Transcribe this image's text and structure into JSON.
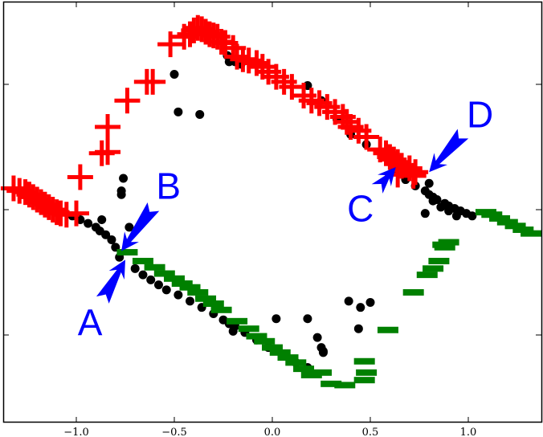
{
  "chart_data": {
    "type": "scatter",
    "title": "",
    "xlabel": "",
    "ylabel": "",
    "xlim": [
      -1.38,
      1.37
    ],
    "ylim": [
      -1.7,
      1.65
    ],
    "grid": false,
    "legend": null,
    "x_ticks": [
      -1.0,
      -0.5,
      0.0,
      0.5,
      1.0
    ],
    "x_tick_labels": [
      "−1.0",
      "−0.5",
      "0.0",
      "0.5",
      "1.0"
    ],
    "y_ticks": [
      1.0,
      0.0,
      -1.0
    ],
    "y_tick_labels": [
      "",
      "",
      ""
    ],
    "series": [
      {
        "name": "black circles",
        "marker": "circle",
        "color": "#000000",
        "points": [
          [
            -1.22,
            0.08
          ],
          [
            -1.18,
            0.06
          ],
          [
            -1.14,
            0.03
          ],
          [
            -1.1,
            0.01
          ],
          [
            -1.06,
            -0.02
          ],
          [
            -1.02,
            -0.05
          ],
          [
            -0.98,
            -0.08
          ],
          [
            -0.94,
            -0.11
          ],
          [
            -0.9,
            -0.14
          ],
          [
            -0.88,
            -0.17
          ],
          [
            -0.85,
            -0.2
          ],
          [
            -0.82,
            -0.24
          ],
          [
            -0.8,
            -0.3
          ],
          [
            -0.78,
            -0.38
          ],
          [
            -0.87,
            -0.08
          ],
          [
            -0.73,
            -0.14
          ],
          [
            -0.76,
            0.25
          ],
          [
            -0.77,
            0.15
          ],
          [
            -0.77,
            0.12
          ],
          [
            -0.5,
            1.08
          ],
          [
            -0.48,
            0.78
          ],
          [
            -0.37,
            0.76
          ],
          [
            -0.23,
            1.23
          ],
          [
            -0.22,
            1.18
          ],
          [
            -0.19,
            1.18
          ],
          [
            -0.16,
            1.16
          ],
          [
            -0.7,
            -0.47
          ],
          [
            -0.66,
            -0.52
          ],
          [
            -0.62,
            -0.56
          ],
          [
            -0.58,
            -0.6
          ],
          [
            -0.54,
            -0.64
          ],
          [
            -0.48,
            -0.68
          ],
          [
            -0.42,
            -0.73
          ],
          [
            -0.36,
            -0.78
          ],
          [
            -0.3,
            -0.83
          ],
          [
            -0.25,
            -0.88
          ],
          [
            -0.22,
            -0.91
          ],
          [
            -0.14,
            -0.98
          ],
          [
            -0.08,
            -1.04
          ],
          [
            -0.02,
            -1.1
          ],
          [
            0.06,
            -1.16
          ],
          [
            0.12,
            -1.22
          ],
          [
            0.18,
            -1.26
          ],
          [
            -0.19,
            -0.93
          ],
          [
            -0.2,
            -0.97
          ],
          [
            0.02,
            -0.87
          ],
          [
            0.18,
            -0.87
          ],
          [
            0.23,
            -1.02
          ],
          [
            0.25,
            -1.1
          ],
          [
            0.26,
            -1.13
          ],
          [
            0.26,
            -1.14
          ],
          [
            0.39,
            -0.73
          ],
          [
            0.45,
            -0.78
          ],
          [
            0.5,
            -0.74
          ],
          [
            0.44,
            -0.95
          ],
          [
            0.18,
            0.99
          ],
          [
            0.25,
            0.87
          ],
          [
            0.33,
            0.72
          ],
          [
            0.4,
            0.6
          ],
          [
            0.48,
            0.52
          ],
          [
            0.56,
            0.42
          ],
          [
            0.62,
            0.31
          ],
          [
            0.68,
            0.24
          ],
          [
            0.73,
            0.19
          ],
          [
            0.78,
            0.15
          ],
          [
            0.8,
            0.12
          ],
          [
            0.82,
            0.1
          ],
          [
            0.84,
            0.08
          ],
          [
            0.88,
            0.05
          ],
          [
            0.9,
            0.03
          ],
          [
            0.93,
            0.01
          ],
          [
            0.96,
            -0.01
          ],
          [
            0.99,
            -0.03
          ],
          [
            1.02,
            -0.05
          ],
          [
            0.82,
            0.07
          ],
          [
            0.86,
            0.02
          ],
          [
            0.9,
            -0.01
          ],
          [
            0.94,
            -0.05
          ],
          [
            0.78,
            -0.03
          ],
          [
            0.8,
            0.21
          ]
        ]
      },
      {
        "name": "red plus",
        "marker": "plus",
        "color": "#ff0000",
        "points": [
          [
            -1.32,
            0.17
          ],
          [
            -1.29,
            0.15
          ],
          [
            -1.26,
            0.14
          ],
          [
            -1.24,
            0.12
          ],
          [
            -1.22,
            0.1
          ],
          [
            -1.2,
            0.08
          ],
          [
            -1.18,
            0.06
          ],
          [
            -1.16,
            0.04
          ],
          [
            -1.14,
            0.02
          ],
          [
            -1.12,
            0.0
          ],
          [
            -1.1,
            -0.02
          ],
          [
            -1.08,
            -0.03
          ],
          [
            -1.05,
            -0.04
          ],
          [
            -1.0,
            -0.03
          ],
          [
            -0.98,
            0.26
          ],
          [
            -0.87,
            0.45
          ],
          [
            -0.84,
            0.46
          ],
          [
            -0.84,
            0.66
          ],
          [
            -0.74,
            0.87
          ],
          [
            -0.64,
            1.02
          ],
          [
            -0.61,
            1.02
          ],
          [
            -0.52,
            1.32
          ],
          [
            -0.45,
            1.38
          ],
          [
            -0.42,
            1.4
          ],
          [
            -0.4,
            1.43
          ],
          [
            -0.38,
            1.45
          ],
          [
            -0.36,
            1.44
          ],
          [
            -0.34,
            1.42
          ],
          [
            -0.32,
            1.4
          ],
          [
            -0.3,
            1.39
          ],
          [
            -0.28,
            1.38
          ],
          [
            -0.26,
            1.34
          ],
          [
            -0.24,
            1.33
          ],
          [
            -0.2,
            1.29
          ],
          [
            -0.18,
            1.22
          ],
          [
            -0.15,
            1.2
          ],
          [
            -0.12,
            1.19
          ],
          [
            -0.08,
            1.17
          ],
          [
            -0.05,
            1.14
          ],
          [
            -0.02,
            1.1
          ],
          [
            0.02,
            1.06
          ],
          [
            0.06,
            1.02
          ],
          [
            0.1,
            0.98
          ],
          [
            0.16,
            0.91
          ],
          [
            0.2,
            0.87
          ],
          [
            0.24,
            0.85
          ],
          [
            0.28,
            0.82
          ],
          [
            0.32,
            0.78
          ],
          [
            0.36,
            0.74
          ],
          [
            0.38,
            0.7
          ],
          [
            0.4,
            0.66
          ],
          [
            0.44,
            0.63
          ],
          [
            0.48,
            0.58
          ],
          [
            0.55,
            0.48
          ],
          [
            0.58,
            0.45
          ],
          [
            0.6,
            0.42
          ],
          [
            0.62,
            0.4
          ],
          [
            0.64,
            0.38
          ],
          [
            0.66,
            0.35
          ],
          [
            0.7,
            0.33
          ],
          [
            0.73,
            0.3
          ],
          [
            0.64,
            0.28
          ],
          [
            0.72,
            0.27
          ]
        ]
      },
      {
        "name": "green dash",
        "marker": "hline",
        "color": "#008000",
        "points": [
          [
            -0.74,
            -0.34
          ],
          [
            -0.66,
            -0.41
          ],
          [
            -0.6,
            -0.46
          ],
          [
            -0.55,
            -0.51
          ],
          [
            -0.5,
            -0.55
          ],
          [
            -0.46,
            -0.59
          ],
          [
            -0.42,
            -0.62
          ],
          [
            -0.38,
            -0.66
          ],
          [
            -0.34,
            -0.71
          ],
          [
            -0.3,
            -0.75
          ],
          [
            -0.26,
            -0.8
          ],
          [
            -0.18,
            -0.89
          ],
          [
            -0.12,
            -0.95
          ],
          [
            -0.08,
            -1.01
          ],
          [
            -0.04,
            -1.05
          ],
          [
            0.0,
            -1.1
          ],
          [
            0.04,
            -1.14
          ],
          [
            0.08,
            -1.18
          ],
          [
            0.12,
            -1.22
          ],
          [
            0.16,
            -1.27
          ],
          [
            0.2,
            -1.32
          ],
          [
            0.25,
            -1.3
          ],
          [
            0.3,
            -1.39
          ],
          [
            0.37,
            -1.4
          ],
          [
            0.47,
            -1.21
          ],
          [
            0.48,
            -1.3
          ],
          [
            0.47,
            -1.36
          ],
          [
            0.59,
            -0.96
          ],
          [
            0.72,
            -0.66
          ],
          [
            0.79,
            -0.52
          ],
          [
            0.82,
            -0.47
          ],
          [
            0.85,
            -0.41
          ],
          [
            0.88,
            -0.3
          ],
          [
            0.87,
            -0.28
          ],
          [
            0.9,
            -0.26
          ],
          [
            1.09,
            -0.02
          ],
          [
            1.12,
            -0.04
          ],
          [
            1.16,
            -0.07
          ],
          [
            1.2,
            -0.1
          ],
          [
            1.24,
            -0.13
          ],
          [
            1.28,
            -0.16
          ],
          [
            1.32,
            -0.19
          ]
        ]
      }
    ],
    "annotations": [
      {
        "label": "A",
        "text_xy": [
          -0.93,
          -0.9
        ],
        "point_xy": [
          -0.75,
          -0.4
        ],
        "color": "#0000ff"
      },
      {
        "label": "B",
        "text_xy": [
          -0.53,
          0.19
        ],
        "point_xy": [
          -0.77,
          -0.33
        ],
        "color": "#0000ff"
      },
      {
        "label": "C",
        "text_xy": [
          0.45,
          0.01
        ],
        "point_xy": [
          0.63,
          0.34
        ],
        "color": "#0000ff"
      },
      {
        "label": "D",
        "text_xy": [
          1.06,
          0.76
        ],
        "point_xy": [
          0.8,
          0.3
        ],
        "color": "#0000ff"
      }
    ]
  }
}
